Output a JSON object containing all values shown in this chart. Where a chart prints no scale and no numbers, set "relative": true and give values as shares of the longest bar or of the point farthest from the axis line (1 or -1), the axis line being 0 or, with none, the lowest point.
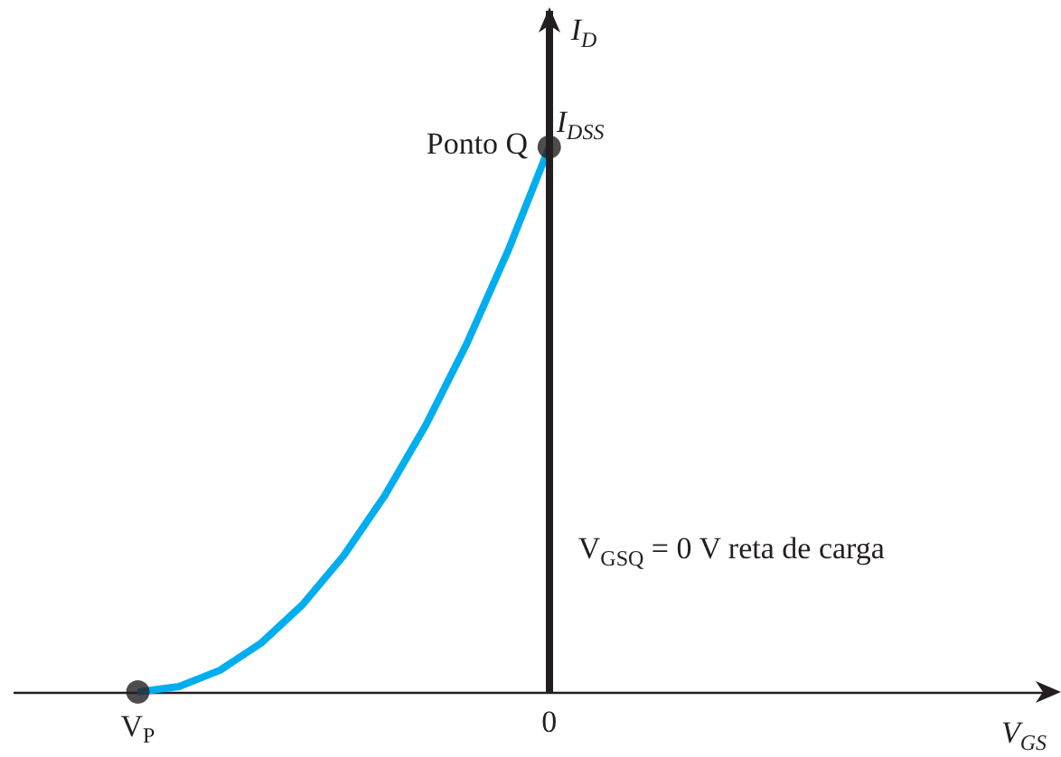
{
  "chart_data": {
    "type": "line",
    "relative": true,
    "xlabel": "V$_{GS}$",
    "ylabel": "I$_{D}$",
    "categories": [
      null,
      null,
      null,
      "V$_{P}$",
      null,
      null,
      null,
      null,
      null,
      null,
      null,
      null,
      null,
      "0",
      null,
      null,
      null,
      null,
      null,
      null,
      null,
      null,
      null,
      null,
      null,
      null
    ],
    "series": [
      {
        "color": "#00aeef",
        "marker": "none",
        "values": [
          null,
          null,
          null,
          0,
          0.01,
          0.04,
          0.09,
          0.16,
          0.25,
          0.36,
          0.49,
          0.64,
          0.81,
          1,
          null,
          null,
          null,
          null,
          null,
          null,
          null,
          null,
          null,
          null,
          null,
          null
        ]
      },
      {
        "type": "scatter",
        "color": "#231f20",
        "marker": "circle",
        "values": [
          null,
          null,
          null,
          0,
          null,
          null,
          null,
          null,
          null,
          null,
          null,
          null,
          null,
          1,
          null,
          null,
          null,
          null,
          null,
          null,
          null,
          null,
          null,
          null,
          null,
          null
        ]
      }
    ],
    "ref_lines": [
      {
        "axis": "x",
        "value": "0",
        "label": "V$_{GSQ}$ = 0 V reta de carga",
        "color": "#231f20"
      }
    ],
    "annotations": [
      {
        "text": "Ponto Q",
        "x": "0",
        "y": 1
      },
      {
        "text": "I$_{DSS}$",
        "x": "0",
        "y": 1
      }
    ],
    "grid": false
  }
}
